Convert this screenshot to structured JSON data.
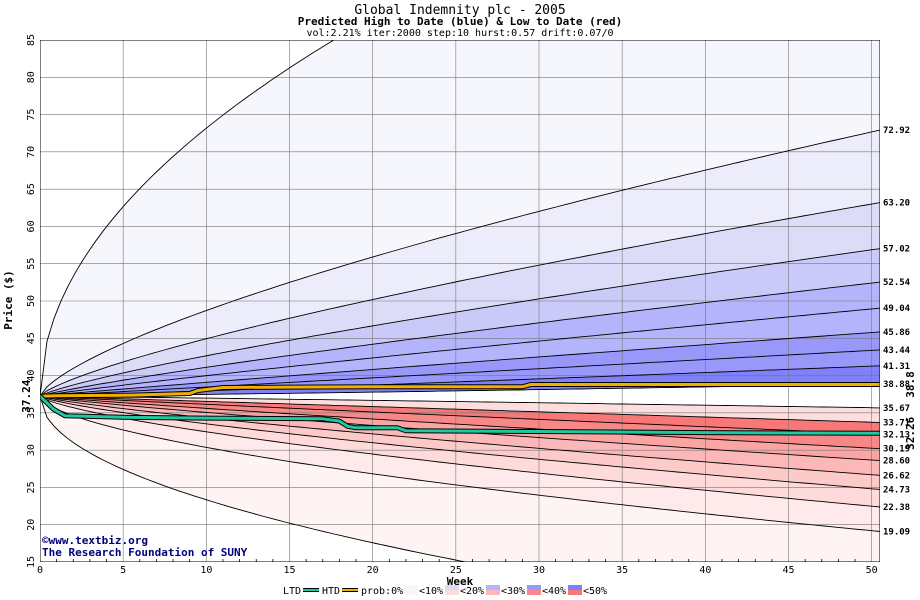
{
  "chart_data": {
    "type": "area",
    "title": "Global Indemnity plc - 2005",
    "subtitle": "Predicted High to Date (blue) &  Low to Date (red)",
    "params": "vol:2.21% iter:2000 step:10 hurst:0.57 drift:0.07/0",
    "xlabel": "Week",
    "ylabel": "Price ($)",
    "xlim": [
      0,
      50.5
    ],
    "ylim": [
      15,
      85
    ],
    "x_ticks": [
      "0",
      "5",
      "10",
      "15",
      "20",
      "25",
      "30",
      "35",
      "40",
      "45",
      "50"
    ],
    "y_ticks": [
      "15",
      "20",
      "25",
      "30",
      "35",
      "40",
      "45",
      "50",
      "55",
      "60",
      "65",
      "70",
      "75",
      "80",
      "85"
    ],
    "start_value": 37.24,
    "start_label": "37.24",
    "grid": true,
    "upper_levels": [
      {
        "label": "41.31",
        "value": 41.31,
        "fill": "#8080f8",
        "k": 1.08
      },
      {
        "label": "43.44",
        "value": 43.44,
        "fill": "#9898fa",
        "k": 1.0
      },
      {
        "label": "45.86",
        "value": 45.86,
        "fill": "#9898fa",
        "k": 0.95
      },
      {
        "label": "49.04",
        "value": 49.04,
        "fill": "#b4b4fc",
        "k": 0.9
      },
      {
        "label": "52.54",
        "value": 52.54,
        "fill": "#b4b4fc",
        "k": 0.85
      },
      {
        "label": "57.02",
        "value": 57.02,
        "fill": "#cacaf8",
        "k": 0.8
      },
      {
        "label": "63.20",
        "value": 63.2,
        "fill": "#dcdcf8",
        "k": 0.75
      },
      {
        "label": "72.92",
        "value": 72.92,
        "fill": "#ececfb",
        "k": 0.7
      },
      {
        "label": "",
        "value": 118.0,
        "fill": "#f6f6fd",
        "k": 0.5
      }
    ],
    "upper_mid": {
      "label": "38.88",
      "value": 38.88
    },
    "lower_levels": [
      {
        "label": "35.67",
        "value": 35.67,
        "fill": "#ffffff",
        "k": 1.1
      },
      {
        "label": "33.71",
        "value": 33.71,
        "fill": "#fcdede",
        "k": 1.0
      },
      {
        "label": "32.13",
        "value": 32.13,
        "fill": "#f87878",
        "k": 0.95
      },
      {
        "label": "30.19",
        "value": 30.19,
        "fill": "#f88888",
        "k": 0.9
      },
      {
        "label": "28.60",
        "value": 28.6,
        "fill": "#faa4a4",
        "k": 0.85
      },
      {
        "label": "26.62",
        "value": 26.62,
        "fill": "#fcb8b8",
        "k": 0.8
      },
      {
        "label": "24.73",
        "value": 24.73,
        "fill": "#fdcaca",
        "k": 0.75
      },
      {
        "label": "22.38",
        "value": 22.38,
        "fill": "#fedada",
        "k": 0.7
      },
      {
        "label": "19.09",
        "value": 19.09,
        "fill": "#feeaea",
        "k": 0.6
      },
      {
        "label": "",
        "value": 6.0,
        "fill": "#fef4f4",
        "k": 0.5
      }
    ],
    "htd_series": {
      "name": "HTD",
      "label": "38.8",
      "color": "#f0b000",
      "points": [
        [
          0,
          37.24
        ],
        [
          1,
          37.3
        ],
        [
          5,
          37.35
        ],
        [
          9,
          37.6
        ],
        [
          9.5,
          38.0
        ],
        [
          11,
          38.4
        ],
        [
          15,
          38.45
        ],
        [
          20,
          38.5
        ],
        [
          29,
          38.5
        ],
        [
          29.5,
          38.8
        ],
        [
          50.5,
          38.8
        ]
      ]
    },
    "ltd_series": {
      "name": "LTD",
      "label": "32.26",
      "color": "#20c8a0",
      "points": [
        [
          0,
          37.24
        ],
        [
          0.8,
          35.5
        ],
        [
          1.5,
          34.6
        ],
        [
          5,
          34.4
        ],
        [
          10,
          34.3
        ],
        [
          17,
          34.2
        ],
        [
          18,
          33.9
        ],
        [
          18.5,
          33.2
        ],
        [
          19,
          33.0
        ],
        [
          21.5,
          33.0
        ],
        [
          22,
          32.6
        ],
        [
          30,
          32.5
        ],
        [
          40,
          32.35
        ],
        [
          50.5,
          32.26
        ]
      ]
    },
    "legend": {
      "items": [
        {
          "label": "LTD",
          "kind": "line",
          "color": "#20c8a0"
        },
        {
          "label": "HTD",
          "kind": "line",
          "color": "#f0b000"
        },
        {
          "label": "prob:0%",
          "kind": "text"
        },
        {
          "label": "<10%",
          "kind": "swatch",
          "top": "#f6f6fd",
          "bottom": "#fef4f4"
        },
        {
          "label": "<20%",
          "kind": "swatch",
          "top": "#dcdcf8",
          "bottom": "#fedada"
        },
        {
          "label": "<30%",
          "kind": "swatch",
          "top": "#b4b4fc",
          "bottom": "#fcb8b8"
        },
        {
          "label": "<40%",
          "kind": "swatch",
          "top": "#9898fa",
          "bottom": "#f88888"
        },
        {
          "label": "<50%",
          "kind": "swatch",
          "top": "#8080f8",
          "bottom": "#f87878"
        }
      ]
    },
    "watermark": [
      "©www.textbiz.org",
      "The Research Foundation of SUNY"
    ]
  }
}
